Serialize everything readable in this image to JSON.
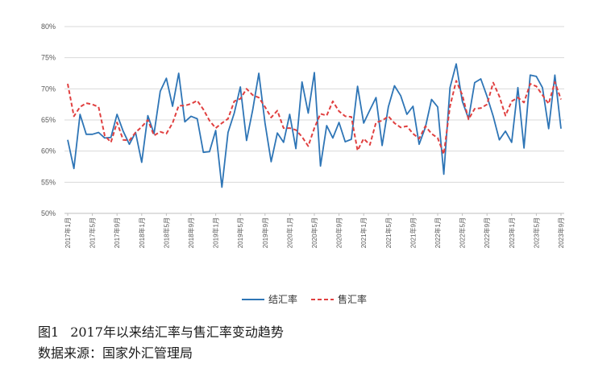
{
  "chart_data": {
    "type": "line",
    "ylim": [
      0.5,
      0.8
    ],
    "y_ticks": [
      "50%",
      "55%",
      "60%",
      "65%",
      "70%",
      "75%",
      "80%"
    ],
    "y_tick_values": [
      0.5,
      0.55,
      0.6,
      0.65,
      0.7,
      0.75,
      0.8
    ],
    "x_tick_labels": [
      "2017年1月",
      "2017年5月",
      "2017年9月",
      "2018年1月",
      "2018年5月",
      "2018年9月",
      "2019年1月",
      "2019年5月",
      "2019年9月",
      "2020年1月",
      "2020年5月",
      "2020年9月",
      "2021年1月",
      "2021年5月",
      "2021年9月",
      "2022年1月",
      "2022年5月",
      "2022年9月",
      "2023年1月",
      "2023年5月",
      "2023年9月"
    ],
    "grid": "horizontal",
    "legend_position": "bottom",
    "series": [
      {
        "name": "结汇率",
        "color": "#2E75B6",
        "dash": "solid",
        "values": [
          0.618,
          0.572,
          0.659,
          0.627,
          0.627,
          0.63,
          0.621,
          0.622,
          0.659,
          0.632,
          0.611,
          0.63,
          0.582,
          0.657,
          0.628,
          0.696,
          0.717,
          0.672,
          0.725,
          0.647,
          0.656,
          0.652,
          0.598,
          0.599,
          0.633,
          0.542,
          0.63,
          0.661,
          0.703,
          0.617,
          0.666,
          0.725,
          0.645,
          0.583,
          0.629,
          0.614,
          0.659,
          0.604,
          0.711,
          0.661,
          0.726,
          0.576,
          0.641,
          0.621,
          0.646,
          0.615,
          0.619,
          0.704,
          0.645,
          0.666,
          0.686,
          0.609,
          0.671,
          0.705,
          0.689,
          0.659,
          0.672,
          0.611,
          0.638,
          0.683,
          0.671,
          0.563,
          0.702,
          0.74,
          0.68,
          0.652,
          0.71,
          0.716,
          0.688,
          0.656,
          0.618,
          0.632,
          0.614,
          0.702,
          0.605,
          0.722,
          0.72,
          0.702,
          0.636,
          0.722,
          0.636
        ]
      },
      {
        "name": "售汇率",
        "color": "#E04040",
        "dash": "dashed",
        "values": [
          0.708,
          0.656,
          0.671,
          0.677,
          0.675,
          0.671,
          0.625,
          0.614,
          0.646,
          0.618,
          0.617,
          0.63,
          0.639,
          0.65,
          0.625,
          0.631,
          0.628,
          0.645,
          0.673,
          0.673,
          0.676,
          0.681,
          0.667,
          0.649,
          0.637,
          0.645,
          0.652,
          0.68,
          0.684,
          0.7,
          0.69,
          0.686,
          0.671,
          0.654,
          0.665,
          0.637,
          0.637,
          0.634,
          0.623,
          0.608,
          0.637,
          0.66,
          0.657,
          0.68,
          0.664,
          0.656,
          0.655,
          0.601,
          0.62,
          0.61,
          0.646,
          0.649,
          0.656,
          0.645,
          0.638,
          0.64,
          0.628,
          0.62,
          0.64,
          0.628,
          0.621,
          0.595,
          0.672,
          0.713,
          0.69,
          0.651,
          0.668,
          0.669,
          0.675,
          0.71,
          0.688,
          0.657,
          0.68,
          0.686,
          0.678,
          0.708,
          0.704,
          0.69,
          0.676,
          0.711,
          0.683
        ]
      }
    ]
  },
  "caption": {
    "figure_label": "图1",
    "title": "2017年以来结汇率与售汇率变动趋势",
    "source": "数据来源：国家外汇管理局"
  }
}
